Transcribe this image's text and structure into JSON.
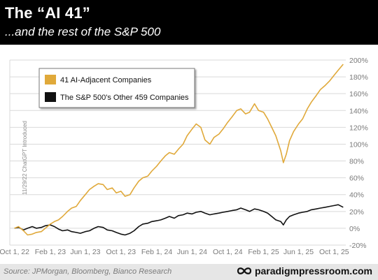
{
  "header": {
    "title": "The “AI 41”",
    "subtitle": "...and the rest of the S&P 500"
  },
  "footer": {
    "source": "Source: JPMorgan, Bloomberg, Bianco Research",
    "brand": "paradigmpressroom.com"
  },
  "colors": {
    "ai": "#E0A93A",
    "rest": "#111111",
    "grid": "#d9d9d9",
    "axis_text": "#7a7a7a"
  },
  "chart_data": {
    "type": "line",
    "annotation": "11/29/22 ChatGPT Introduced",
    "x_ticks": [
      "Oct 1, 22",
      "Feb 1, 23",
      "Jun 1, 23",
      "Oct 1, 23",
      "Feb 1, 24",
      "Jun 1, 24",
      "Oct 1, 24",
      "Feb 1, 25",
      "Jun 1, 25",
      "Oct 1, 25"
    ],
    "y_ticks": [
      "-20%",
      "0%",
      "20%",
      "40%",
      "60%",
      "80%",
      "100%",
      "120%",
      "140%",
      "160%",
      "180%",
      "200%"
    ],
    "ylim": [
      -20,
      200
    ],
    "legend": {
      "placement": "top-left",
      "entries": [
        "41 AI-Adjacent Companies",
        "The S&P 500's Other 459 Companies"
      ]
    },
    "series": [
      {
        "name": "41 AI-Adjacent Companies",
        "x": [
          "2022-10-01",
          "2022-10-15",
          "2022-11-01",
          "2022-11-15",
          "2022-12-01",
          "2022-12-15",
          "2023-01-01",
          "2023-01-15",
          "2023-02-01",
          "2023-02-15",
          "2023-03-01",
          "2023-03-15",
          "2023-04-01",
          "2023-04-15",
          "2023-05-01",
          "2023-05-15",
          "2023-06-01",
          "2023-06-15",
          "2023-07-01",
          "2023-07-15",
          "2023-08-01",
          "2023-08-15",
          "2023-09-01",
          "2023-09-15",
          "2023-10-01",
          "2023-10-15",
          "2023-11-01",
          "2023-11-15",
          "2023-12-01",
          "2023-12-15",
          "2024-01-01",
          "2024-01-15",
          "2024-02-01",
          "2024-02-15",
          "2024-03-01",
          "2024-03-15",
          "2024-04-01",
          "2024-04-15",
          "2024-05-01",
          "2024-05-15",
          "2024-06-01",
          "2024-06-15",
          "2024-07-01",
          "2024-07-15",
          "2024-08-01",
          "2024-08-15",
          "2024-09-01",
          "2024-09-15",
          "2024-10-01",
          "2024-10-15",
          "2024-11-01",
          "2024-11-15",
          "2024-12-01",
          "2024-12-15",
          "2025-01-01",
          "2025-01-15",
          "2025-02-01",
          "2025-02-15",
          "2025-03-01",
          "2025-03-15",
          "2025-04-01",
          "2025-04-10",
          "2025-04-20",
          "2025-05-01",
          "2025-05-15",
          "2025-06-01",
          "2025-06-15",
          "2025-07-01",
          "2025-07-15",
          "2025-08-01",
          "2025-08-15",
          "2025-09-01",
          "2025-09-15",
          "2025-10-01",
          "2025-10-15",
          "2025-11-01"
        ],
        "values": [
          0,
          2,
          -3,
          -8,
          -7,
          -5,
          -4,
          0,
          5,
          8,
          10,
          14,
          20,
          24,
          26,
          33,
          40,
          46,
          50,
          53,
          52,
          46,
          48,
          42,
          44,
          38,
          40,
          48,
          56,
          60,
          62,
          68,
          74,
          80,
          86,
          90,
          88,
          94,
          100,
          110,
          118,
          124,
          120,
          105,
          100,
          108,
          112,
          118,
          126,
          132,
          140,
          142,
          136,
          138,
          148,
          140,
          138,
          130,
          120,
          110,
          92,
          78,
          88,
          104,
          115,
          124,
          130,
          142,
          150,
          158,
          165,
          170,
          175,
          182,
          188,
          195
        ]
      },
      {
        "name": "The S&P 500's Other 459 Companies",
        "x": [
          "2022-10-01",
          "2022-10-15",
          "2022-11-01",
          "2022-11-15",
          "2022-12-01",
          "2022-12-15",
          "2023-01-01",
          "2023-01-15",
          "2023-02-01",
          "2023-02-15",
          "2023-03-01",
          "2023-03-15",
          "2023-04-01",
          "2023-04-15",
          "2023-05-01",
          "2023-05-15",
          "2023-06-01",
          "2023-06-15",
          "2023-07-01",
          "2023-07-15",
          "2023-08-01",
          "2023-08-15",
          "2023-09-01",
          "2023-09-15",
          "2023-10-01",
          "2023-10-15",
          "2023-11-01",
          "2023-11-15",
          "2023-12-01",
          "2023-12-15",
          "2024-01-01",
          "2024-01-15",
          "2024-02-01",
          "2024-02-15",
          "2024-03-01",
          "2024-03-15",
          "2024-04-01",
          "2024-04-15",
          "2024-05-01",
          "2024-05-15",
          "2024-06-01",
          "2024-06-15",
          "2024-07-01",
          "2024-07-15",
          "2024-08-01",
          "2024-08-15",
          "2024-09-01",
          "2024-09-15",
          "2024-10-01",
          "2024-10-15",
          "2024-11-01",
          "2024-11-15",
          "2024-12-01",
          "2024-12-15",
          "2025-01-01",
          "2025-01-15",
          "2025-02-01",
          "2025-02-15",
          "2025-03-01",
          "2025-03-15",
          "2025-04-01",
          "2025-04-10",
          "2025-04-20",
          "2025-05-01",
          "2025-05-15",
          "2025-06-01",
          "2025-06-15",
          "2025-07-01",
          "2025-07-15",
          "2025-08-01",
          "2025-08-15",
          "2025-09-01",
          "2025-09-15",
          "2025-10-01",
          "2025-10-15",
          "2025-11-01"
        ],
        "values": [
          0,
          1,
          -2,
          0,
          2,
          0,
          1,
          3,
          4,
          2,
          -1,
          -3,
          -2,
          -4,
          -5,
          -6,
          -4,
          -3,
          0,
          2,
          1,
          -2,
          -3,
          -5,
          -7,
          -8,
          -6,
          -3,
          2,
          5,
          6,
          8,
          9,
          10,
          12,
          14,
          12,
          15,
          16,
          18,
          17,
          19,
          20,
          18,
          16,
          17,
          18,
          19,
          20,
          21,
          22,
          24,
          22,
          20,
          23,
          22,
          20,
          18,
          14,
          10,
          8,
          4,
          10,
          14,
          16,
          18,
          19,
          20,
          22,
          23,
          24,
          25,
          26,
          27,
          28,
          25
        ]
      }
    ]
  }
}
